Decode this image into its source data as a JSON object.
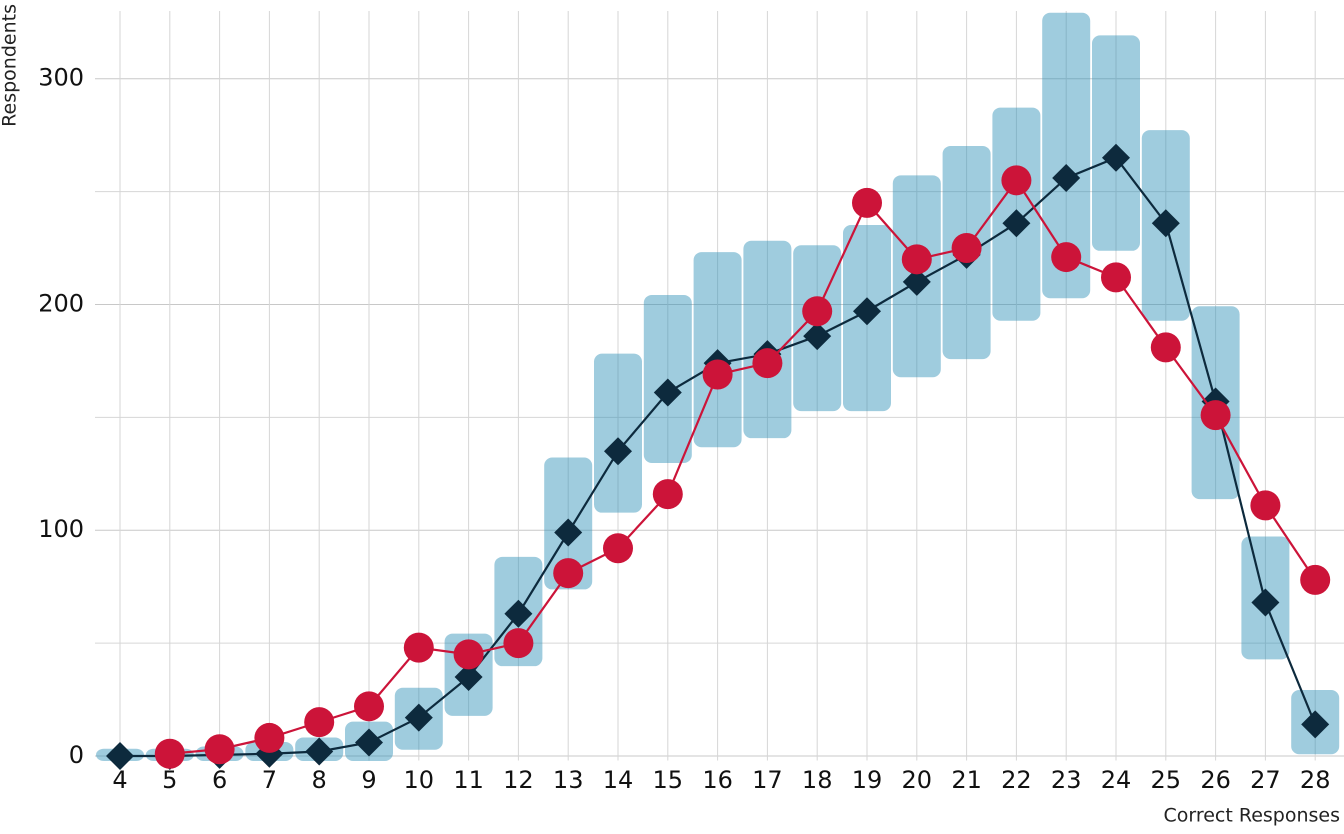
{
  "chart_data": {
    "type": "line",
    "x_label": "Correct Responses",
    "y_label": "Respondents",
    "categories": [
      4,
      5,
      6,
      7,
      8,
      9,
      10,
      11,
      12,
      13,
      14,
      15,
      16,
      17,
      18,
      19,
      20,
      21,
      22,
      23,
      24,
      25,
      26,
      27,
      28
    ],
    "ylim": [
      -2,
      330
    ],
    "yticks": [
      0,
      100,
      200,
      300
    ],
    "minor_yticks": [
      50,
      150,
      250
    ],
    "grid": true,
    "ranges": {
      "color": "#2a8fb5",
      "low": [
        0,
        0,
        0,
        0,
        0,
        0,
        5,
        20,
        42,
        76,
        110,
        132,
        139,
        143,
        155,
        155,
        170,
        178,
        195,
        205,
        226,
        195,
        116,
        45,
        3
      ],
      "high": [
        1,
        1,
        2,
        4,
        6,
        13,
        28,
        52,
        86,
        130,
        176,
        202,
        221,
        226,
        224,
        233,
        255,
        268,
        285,
        327,
        317,
        275,
        197,
        95,
        27
      ]
    },
    "series": [
      {
        "color": "#0d2a3d",
        "marker": "diamond",
        "values": [
          0,
          0,
          0.5,
          1,
          2,
          6,
          17,
          35,
          63,
          99,
          135,
          161,
          174,
          178,
          186,
          197,
          210,
          222,
          236,
          256,
          265,
          236,
          157,
          68,
          14
        ]
      },
      {
        "color": "#cc1439",
        "marker": "circle",
        "values": [
          null,
          1,
          3,
          8,
          15,
          22,
          48,
          45,
          50,
          81,
          92,
          116,
          169,
          174,
          197,
          245,
          220,
          225,
          255,
          221,
          212,
          181,
          151,
          111,
          78
        ]
      }
    ]
  }
}
